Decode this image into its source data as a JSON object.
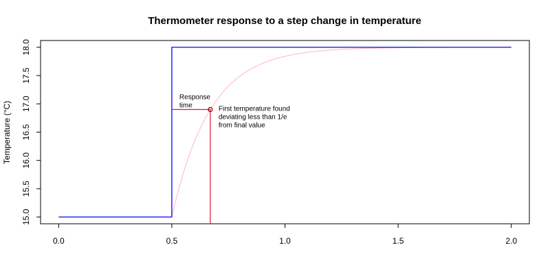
{
  "chart_data": {
    "type": "line",
    "title": "Thermometer response to a step change in temperature",
    "xlabel": "",
    "ylabel": "Temperature (°C)",
    "xlim": [
      -0.08,
      2.08
    ],
    "ylim": [
      14.88,
      18.12
    ],
    "x_ticks": [
      0.0,
      0.5,
      1.0,
      1.5,
      2.0
    ],
    "x_tick_labels": [
      "0.0",
      "0.5",
      "1.0",
      "1.5",
      "2.0"
    ],
    "y_ticks": [
      15.0,
      15.5,
      16.0,
      16.5,
      17.0,
      17.5,
      18.0
    ],
    "y_tick_labels": [
      "15.0",
      "15.5",
      "16.0",
      "16.5",
      "17.0",
      "17.5",
      "18.0"
    ],
    "grid": false,
    "series": [
      {
        "color": "#0000ff",
        "style": "step",
        "x": [
          0.0,
          0.5,
          0.5,
          2.0
        ],
        "y": [
          15.0,
          15.0,
          18.0,
          18.0
        ]
      },
      {
        "color": "#ffb6c1",
        "style": "exponential",
        "t0": 0.5,
        "tau": 0.17,
        "y_start": 15.0,
        "y_final": 18.0,
        "x_end": 2.0
      }
    ],
    "marker": {
      "x": 0.67,
      "y": 16.9,
      "color": "#8b0000"
    },
    "response_time_segment": {
      "x0": 0.5,
      "x1": 0.67,
      "y": 16.9,
      "color": "#dc143c"
    },
    "vertical_drop": {
      "x": 0.67,
      "y_top": 16.9,
      "color": "#dc143c"
    },
    "annotations": {
      "response_time": [
        "Response",
        "time"
      ],
      "first_found": [
        "First temperature found",
        "deviating less than 1/e",
        "from final value"
      ]
    }
  }
}
